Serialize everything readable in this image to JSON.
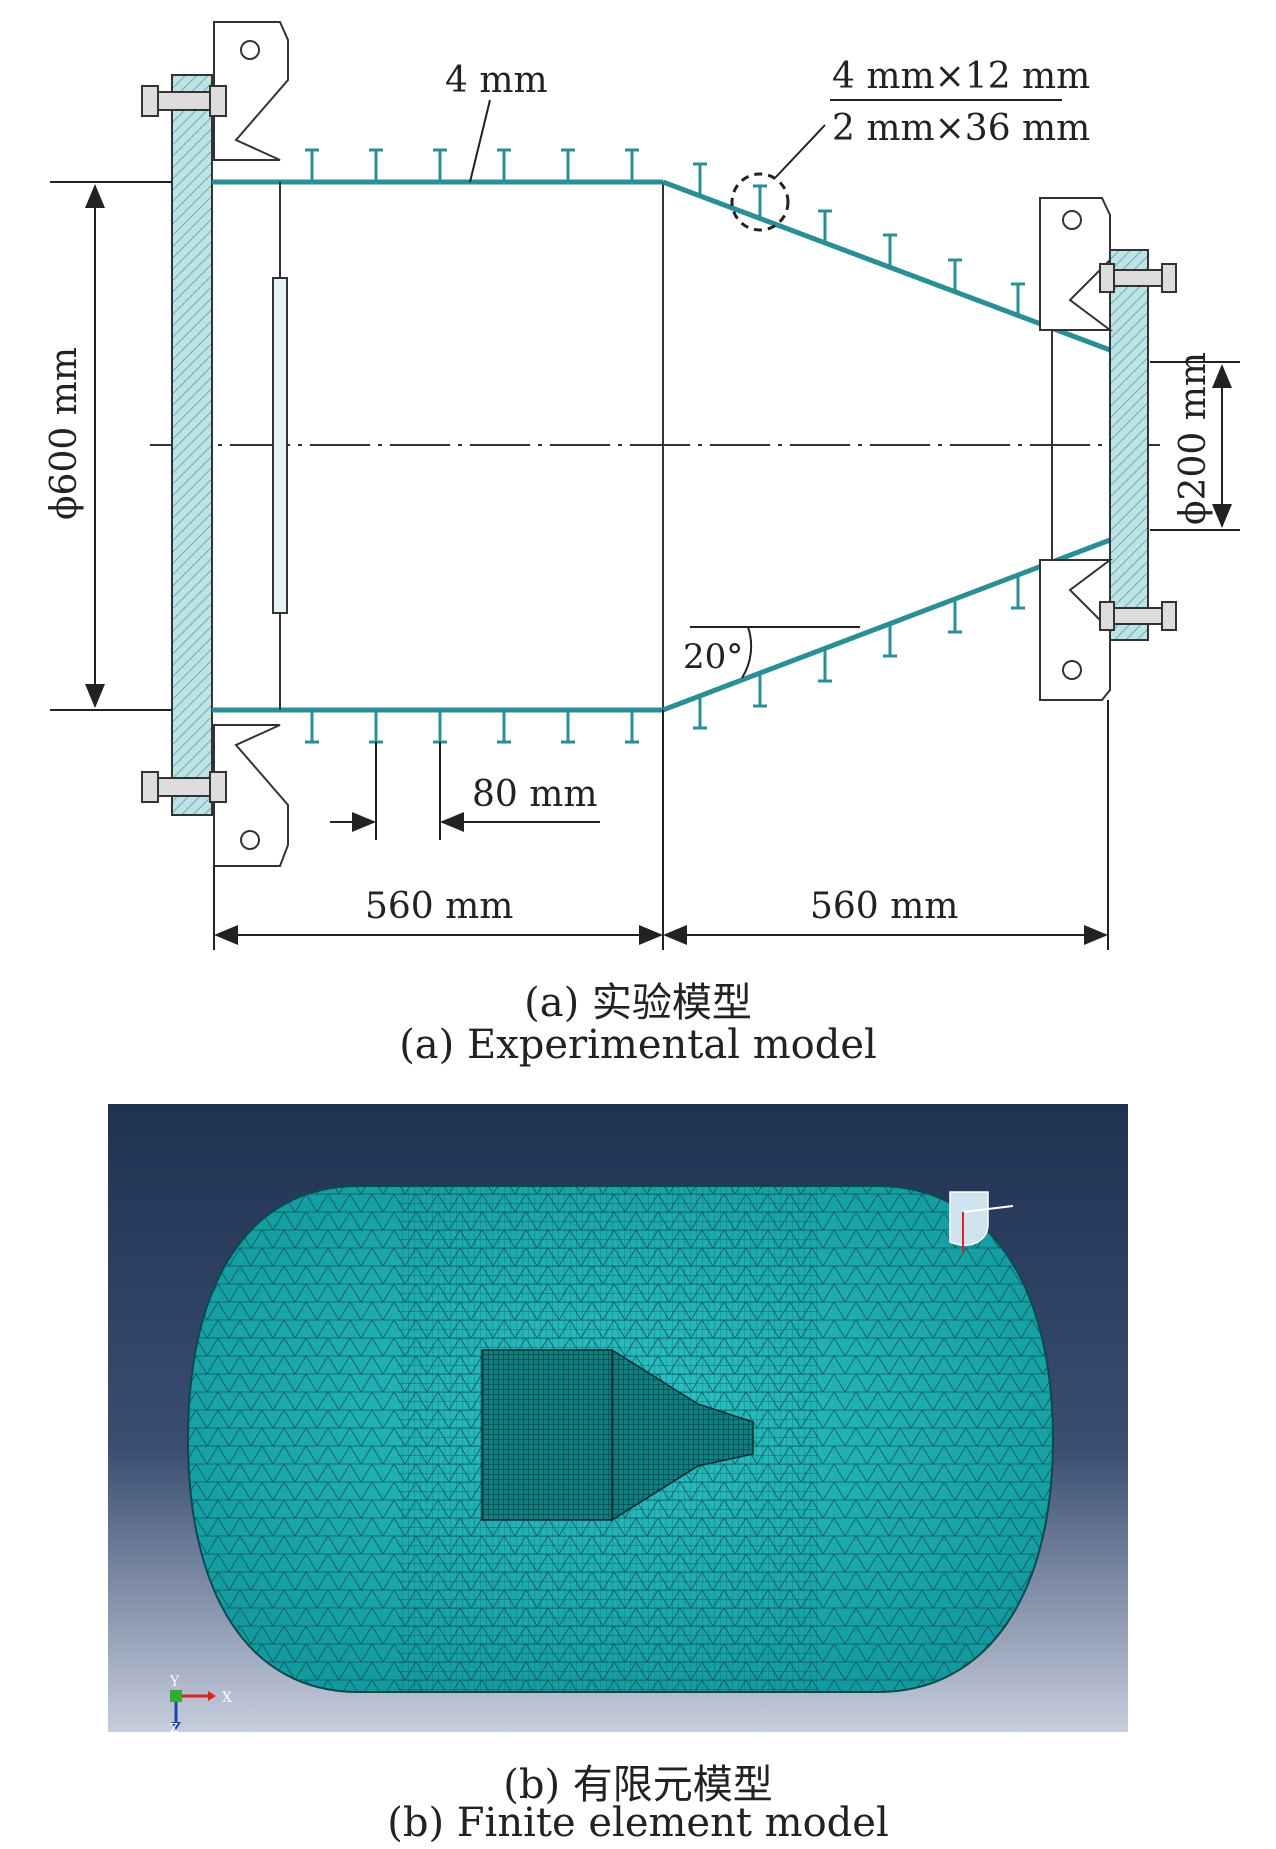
{
  "experimental": {
    "labels": {
      "wall_thickness": "4 mm",
      "stiffener_top": "4 mm×12 mm",
      "stiffener_bottom": "2 mm×36 mm",
      "big_diameter": "ϕ600 mm",
      "small_diameter": "ϕ200 mm",
      "spacing": "80 mm",
      "cyl_length": "560 mm",
      "cone_length": "560 mm",
      "angle": "20°"
    },
    "caption_cn": "(a) 实验模型",
    "caption_en": "(a) Experimental model"
  },
  "finite_element": {
    "triad_labels": {
      "x": "X",
      "y": "Y",
      "z": "Z"
    },
    "caption_cn": "(b) 有限元模型",
    "caption_en": "(b) Finite element model"
  },
  "colors": {
    "hatch": "#7fc4c8",
    "line": "#2a2a2a",
    "mesh_fill": "#1aa6aa",
    "mesh_line": "#0b4a4c",
    "bg_top": "#1f3252",
    "bg_bottom": "#c7cedd"
  }
}
